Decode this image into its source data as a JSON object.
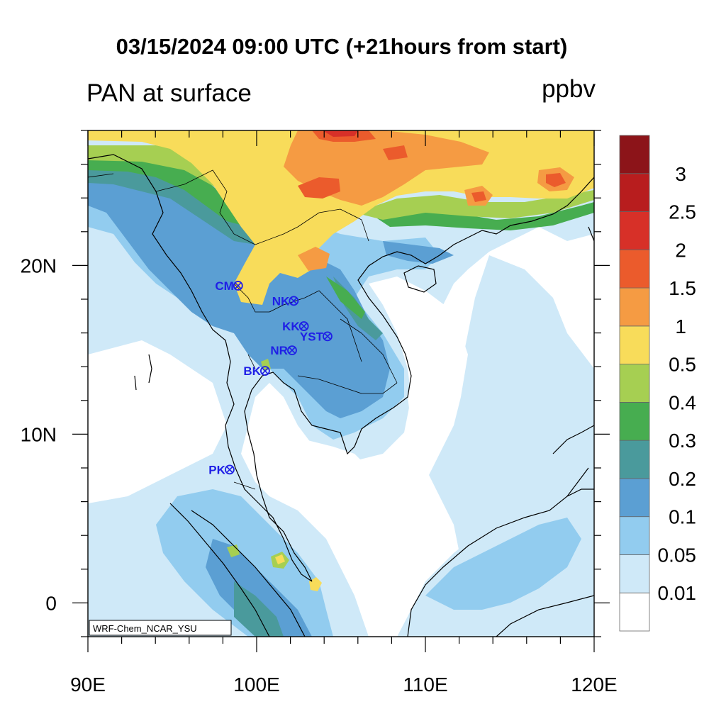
{
  "header": {
    "title": "03/15/2024 09:00 UTC (+21hours from start)",
    "left_title": "PAN at surface",
    "units": "ppbv"
  },
  "map": {
    "lon_range": [
      90,
      120
    ],
    "lat_range": [
      -2,
      28
    ],
    "x_ticks": [
      {
        "value": 90,
        "label": "90E"
      },
      {
        "value": 100,
        "label": "100E"
      },
      {
        "value": 110,
        "label": "110E"
      },
      {
        "value": 120,
        "label": "120E"
      }
    ],
    "y_ticks": [
      {
        "value": 0,
        "label": "0"
      },
      {
        "value": 10,
        "label": "10N"
      },
      {
        "value": 20,
        "label": "20N"
      }
    ],
    "model_label": "WRF-Chem_NCAR_YSU",
    "stations": [
      {
        "name": "CM",
        "lon": 98.9,
        "lat": 18.8
      },
      {
        "name": "NK",
        "lon": 102.2,
        "lat": 17.9
      },
      {
        "name": "KK",
        "lon": 102.8,
        "lat": 16.4
      },
      {
        "name": "YST",
        "lon": 104.2,
        "lat": 15.8
      },
      {
        "name": "NR",
        "lon": 102.1,
        "lat": 14.97
      },
      {
        "name": "BK",
        "lon": 100.5,
        "lat": 13.75
      },
      {
        "name": "PK",
        "lon": 98.4,
        "lat": 7.9
      }
    ]
  },
  "colorbar": {
    "levels": [
      "0.01",
      "0.05",
      "0.1",
      "0.2",
      "0.3",
      "0.4",
      "0.5",
      "1",
      "1.5",
      "2",
      "2.5",
      "3"
    ],
    "colors": [
      "#ffffff",
      "#cfe9f8",
      "#92ccef",
      "#5b9fd3",
      "#4a9a9c",
      "#47ad50",
      "#a6cf52",
      "#f8dc5a",
      "#f59b43",
      "#eb5b2c",
      "#d73028",
      "#b81d1e",
      "#8c1419"
    ]
  }
}
